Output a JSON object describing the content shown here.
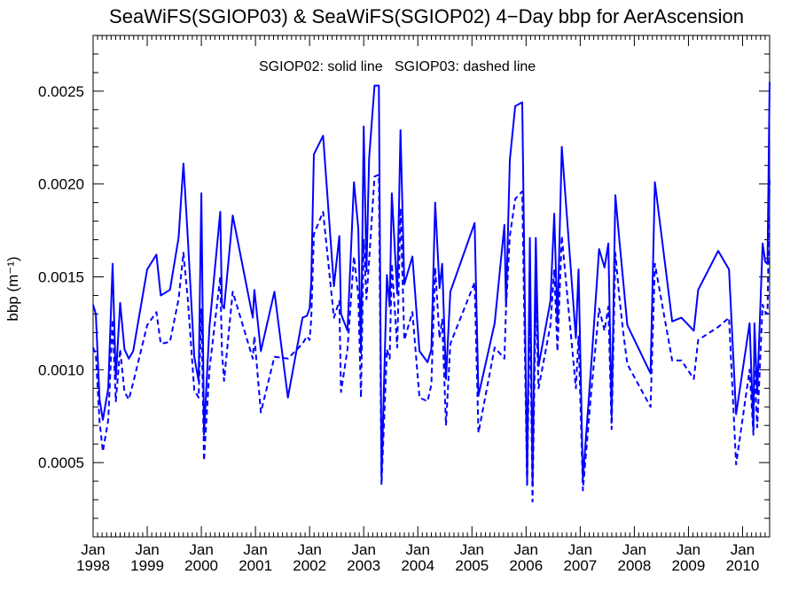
{
  "chart_data": {
    "type": "line",
    "title": "SeaWiFS(SGIOP03) & SeaWiFS(SGIOP02) 4−Day bbp for AerAscension",
    "annotation": "SGIOP02: solid line   SGIOP03: dashed line",
    "ylabel": "bbp (m⁻¹)",
    "xlabel": "",
    "xlim": [
      1998.0,
      2010.5
    ],
    "ylim": [
      0.0001,
      0.0028
    ],
    "yticks": [
      0.0005,
      0.001,
      0.0015,
      0.002,
      0.0025
    ],
    "ytick_labels": [
      "0.0005",
      "0.0010",
      "0.0015",
      "0.0020",
      "0.0025"
    ],
    "xticks": [
      1998,
      1999,
      2000,
      2001,
      2002,
      2003,
      2004,
      2005,
      2006,
      2007,
      2008,
      2009,
      2010
    ],
    "xtick_labels_top": [
      "Jan",
      "Jan",
      "Jan",
      "Jan",
      "Jan",
      "Jan",
      "Jan",
      "Jan",
      "Jan",
      "Jan",
      "Jan",
      "Jan",
      "Jan"
    ],
    "xtick_labels_bottom": [
      "1998",
      "1999",
      "2000",
      "2001",
      "2002",
      "2003",
      "2004",
      "2005",
      "2006",
      "2007",
      "2008",
      "2009",
      "2010"
    ],
    "line_color": "#0000ff",
    "series": [
      {
        "name": "SGIOP02",
        "style": "solid",
        "x": [
          1998.0,
          1998.05,
          1998.12,
          1998.18,
          1998.28,
          1998.36,
          1998.42,
          1998.5,
          1998.58,
          1998.66,
          1998.74,
          1999.0,
          1999.17,
          1999.25,
          1999.42,
          1999.58,
          1999.67,
          1999.75,
          1999.87,
          1999.95,
          2000.0,
          2000.05,
          2000.15,
          2000.35,
          2000.38,
          2000.42,
          2000.58,
          2000.95,
          2000.98,
          2001.1,
          2001.35,
          2001.6,
          2001.87,
          2001.95,
          2002.0,
          2002.03,
          2002.08,
          2002.25,
          2002.45,
          2002.55,
          2002.58,
          2002.7,
          2002.82,
          2002.9,
          2002.95,
          2003.0,
          2003.05,
          2003.1,
          2003.2,
          2003.28,
          2003.33,
          2003.43,
          2003.48,
          2003.52,
          2003.62,
          2003.68,
          2003.75,
          2003.9,
          2004.03,
          2004.18,
          2004.25,
          2004.32,
          2004.4,
          2004.45,
          2004.52,
          2004.6,
          2005.05,
          2005.12,
          2005.42,
          2005.6,
          2005.63,
          2005.7,
          2005.8,
          2005.93,
          2006.02,
          2006.07,
          2006.12,
          2006.18,
          2006.23,
          2006.45,
          2006.52,
          2006.58,
          2006.66,
          2006.92,
          2006.97,
          2007.05,
          2007.2,
          2007.35,
          2007.45,
          2007.52,
          2007.58,
          2007.65,
          2007.72,
          2007.8,
          2007.87,
          2008.3,
          2008.38,
          2008.7,
          2008.87,
          2009.1,
          2009.18,
          2009.55,
          2009.75,
          2009.88,
          2010.13,
          2010.2,
          2010.22,
          2010.27,
          2010.37,
          2010.42,
          2010.46,
          2010.5
        ],
        "values": [
          0.00135,
          0.0013,
          0.00084,
          0.00073,
          0.0009,
          0.00157,
          0.00095,
          0.00136,
          0.00111,
          0.00106,
          0.0011,
          0.00154,
          0.00162,
          0.0014,
          0.00143,
          0.00171,
          0.00211,
          0.00171,
          0.00107,
          0.00094,
          0.00195,
          0.00065,
          0.00123,
          0.00185,
          0.00135,
          0.00133,
          0.00183,
          0.00128,
          0.00143,
          0.0011,
          0.00142,
          0.00085,
          0.00128,
          0.00129,
          0.00133,
          0.00147,
          0.00216,
          0.00226,
          0.00145,
          0.00172,
          0.0013,
          0.00121,
          0.00201,
          0.00176,
          0.00109,
          0.00231,
          0.00153,
          0.00214,
          0.00253,
          0.00253,
          0.00042,
          0.00151,
          0.00134,
          0.00195,
          0.00141,
          0.00229,
          0.00146,
          0.00161,
          0.0011,
          0.00104,
          0.00111,
          0.0019,
          0.00144,
          0.00157,
          0.00095,
          0.00142,
          0.00179,
          0.00086,
          0.00125,
          0.00178,
          0.00134,
          0.00213,
          0.00242,
          0.00244,
          0.00041,
          0.00171,
          0.0004,
          0.00171,
          0.00102,
          0.00137,
          0.00184,
          0.00125,
          0.0022,
          0.00117,
          0.00154,
          0.00041,
          0.00101,
          0.00165,
          0.00155,
          0.00168,
          0.00075,
          0.00194,
          0.00171,
          0.00146,
          0.00124,
          0.00098,
          0.00201,
          0.00126,
          0.00128,
          0.00121,
          0.00143,
          0.00164,
          0.00154,
          0.00076,
          0.00125,
          0.00068,
          0.00125,
          0.00087,
          0.00168,
          0.00158,
          0.00157,
          0.00255
        ]
      },
      {
        "name": "SGIOP03",
        "style": "dashed",
        "x": [
          1998.0,
          1998.05,
          1998.12,
          1998.18,
          1998.28,
          1998.36,
          1998.42,
          1998.5,
          1998.58,
          1998.66,
          1998.74,
          1999.0,
          1999.17,
          1999.25,
          1999.42,
          1999.58,
          1999.67,
          1999.75,
          1999.87,
          1999.95,
          2000.0,
          2000.05,
          2000.15,
          2000.35,
          2000.38,
          2000.42,
          2000.58,
          2000.95,
          2000.98,
          2001.1,
          2001.35,
          2001.6,
          2001.87,
          2001.95,
          2002.0,
          2002.03,
          2002.08,
          2002.25,
          2002.45,
          2002.55,
          2002.58,
          2002.7,
          2002.82,
          2002.9,
          2002.95,
          2003.0,
          2003.05,
          2003.1,
          2003.2,
          2003.28,
          2003.33,
          2003.43,
          2003.48,
          2003.52,
          2003.62,
          2003.68,
          2003.75,
          2003.9,
          2004.03,
          2004.18,
          2004.25,
          2004.32,
          2004.4,
          2004.45,
          2004.52,
          2004.6,
          2005.05,
          2005.12,
          2005.42,
          2005.6,
          2005.63,
          2005.7,
          2005.8,
          2005.93,
          2006.02,
          2006.07,
          2006.12,
          2006.18,
          2006.23,
          2006.45,
          2006.52,
          2006.58,
          2006.66,
          2006.92,
          2006.97,
          2007.05,
          2007.2,
          2007.35,
          2007.45,
          2007.52,
          2007.58,
          2007.65,
          2007.72,
          2007.8,
          2007.87,
          2008.3,
          2008.38,
          2008.7,
          2008.87,
          2009.1,
          2009.18,
          2009.55,
          2009.75,
          2009.88,
          2010.13,
          2010.2,
          2010.22,
          2010.27,
          2010.37,
          2010.42,
          2010.46,
          2010.5
        ],
        "values": [
          0.00112,
          0.00108,
          0.00072,
          0.00056,
          0.00073,
          0.00127,
          0.00083,
          0.00111,
          0.00088,
          0.00084,
          0.00093,
          0.00124,
          0.00131,
          0.00114,
          0.00115,
          0.00138,
          0.00163,
          0.00138,
          0.00089,
          0.00085,
          0.00133,
          0.00051,
          0.001,
          0.0015,
          0.0011,
          0.00094,
          0.00142,
          0.00106,
          0.00118,
          0.00077,
          0.00107,
          0.00106,
          0.00114,
          0.00118,
          0.00116,
          0.00127,
          0.00173,
          0.00185,
          0.00128,
          0.00137,
          0.00088,
          0.00111,
          0.00161,
          0.0014,
          0.00085,
          0.0017,
          0.00138,
          0.00159,
          0.00204,
          0.00205,
          0.00038,
          0.00111,
          0.00106,
          0.00157,
          0.00112,
          0.00187,
          0.00116,
          0.00131,
          0.00085,
          0.00083,
          0.00092,
          0.00155,
          0.00117,
          0.00127,
          0.0007,
          0.00114,
          0.00147,
          0.00066,
          0.00112,
          0.00106,
          0.00133,
          0.00172,
          0.00192,
          0.00196,
          0.00037,
          0.00137,
          0.00029,
          0.0014,
          0.0009,
          0.00124,
          0.00154,
          0.0011,
          0.00172,
          0.0009,
          0.00118,
          0.00035,
          0.00087,
          0.00133,
          0.00121,
          0.00134,
          0.00068,
          0.00163,
          0.0014,
          0.00119,
          0.00103,
          0.0008,
          0.00157,
          0.00105,
          0.00105,
          0.00095,
          0.00116,
          0.00123,
          0.00128,
          0.00049,
          0.001,
          0.00065,
          0.001,
          0.00069,
          0.00135,
          0.00131,
          0.0013,
          0.00204
        ]
      }
    ]
  }
}
